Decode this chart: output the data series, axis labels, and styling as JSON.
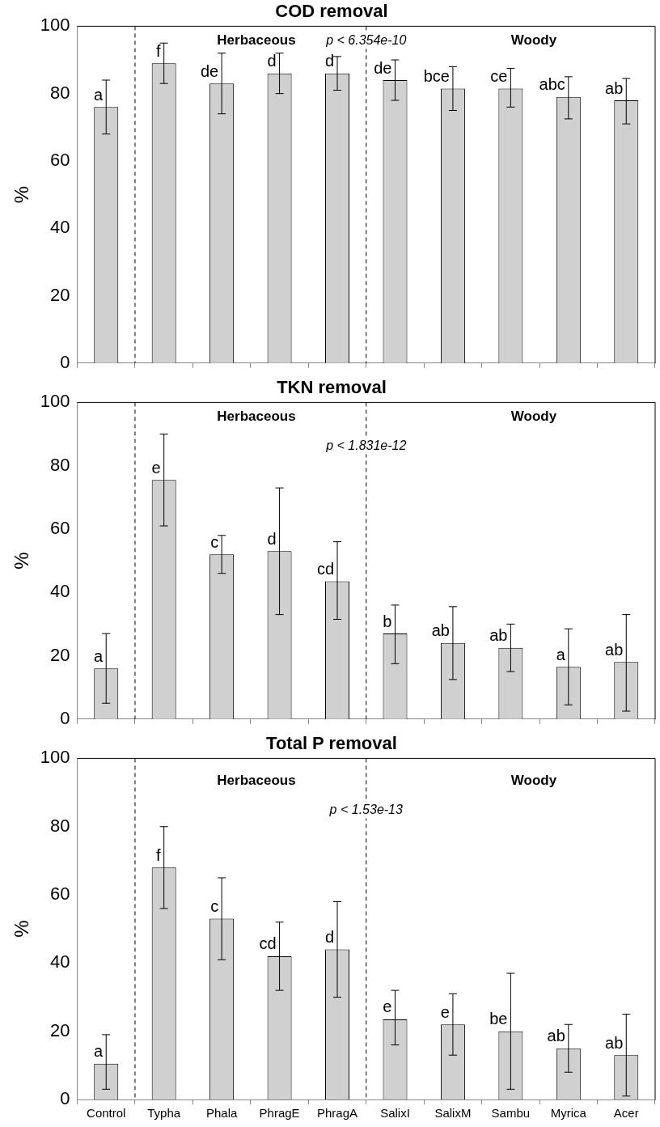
{
  "chart_data": [
    {
      "type": "bar",
      "title": "COD removal",
      "ylabel": "%",
      "categories": [
        "Control",
        "Typha",
        "Phala",
        "PhragE",
        "PhragA",
        "SalixI",
        "SalixM",
        "Sambu",
        "Myrica",
        "Acer"
      ],
      "tick_labels": "y",
      "values": [
        76,
        89,
        83,
        86,
        86,
        84,
        81.5,
        81.5,
        79,
        78
      ],
      "color": "#d0d0d0",
      "errors": [
        [
          68,
          84
        ],
        [
          83,
          95
        ],
        [
          74,
          92
        ],
        [
          80,
          92
        ],
        [
          81,
          91
        ],
        [
          78,
          90
        ],
        [
          75,
          88
        ],
        [
          76,
          87.5
        ],
        [
          72.5,
          85
        ],
        [
          71,
          84.5
        ]
      ],
      "ylim": [
        0,
        100
      ],
      "yticks": [
        0,
        20,
        40,
        60,
        80,
        100
      ],
      "annotations": [
        "Herbaceous",
        "p < 6.354e-10",
        "Woody",
        {
          "text": "a",
          "x": "Control",
          "y": 76
        },
        {
          "text": "f",
          "x": "Typha",
          "y": 89
        },
        {
          "text": "de",
          "x": "Phala",
          "y": 83
        },
        {
          "text": "d",
          "x": "PhragE",
          "y": 86
        },
        {
          "text": "d",
          "x": "PhragA",
          "y": 86
        },
        {
          "text": "de",
          "x": "SalixI",
          "y": 84
        },
        {
          "text": "bce",
          "x": "SalixM",
          "y": 81.5
        },
        {
          "text": "ce",
          "x": "Sambu",
          "y": 81.5
        },
        {
          "text": "abc",
          "x": "Myrica",
          "y": 79
        },
        {
          "text": "ab",
          "x": "Acer",
          "y": 78
        }
      ]
    },
    {
      "type": "bar",
      "title": "TKN removal",
      "ylabel": "%",
      "categories": [
        "Control",
        "Typha",
        "Phala",
        "PhragE",
        "PhragA",
        "SalixI",
        "SalixM",
        "Sambu",
        "Myrica",
        "Acer"
      ],
      "tick_labels": "y",
      "values": [
        16,
        75.5,
        52,
        53,
        43.5,
        27,
        24,
        22.5,
        16.5,
        18
      ],
      "color": "#d0d0d0",
      "errors": [
        [
          5,
          27
        ],
        [
          61,
          90
        ],
        [
          46,
          58
        ],
        [
          33,
          73
        ],
        [
          31.5,
          56
        ],
        [
          17.5,
          36
        ],
        [
          12.5,
          35.5
        ],
        [
          15,
          30
        ],
        [
          4.5,
          28.5
        ],
        [
          2.5,
          33
        ]
      ],
      "ylim": [
        0,
        100
      ],
      "yticks": [
        0,
        20,
        40,
        60,
        80,
        100
      ],
      "annotations": [
        "Herbaceous",
        "p < 1.831e-12",
        "Woody",
        {
          "text": "a",
          "x": "Control",
          "y": 16
        },
        {
          "text": "e",
          "x": "Typha",
          "y": 75.5
        },
        {
          "text": "c",
          "x": "Phala",
          "y": 52
        },
        {
          "text": "d",
          "x": "PhragE",
          "y": 53
        },
        {
          "text": "cd",
          "x": "PhragA",
          "y": 43.5
        },
        {
          "text": "b",
          "x": "SalixI",
          "y": 27
        },
        {
          "text": "ab",
          "x": "SalixM",
          "y": 24
        },
        {
          "text": "ab",
          "x": "Sambu",
          "y": 22.5
        },
        {
          "text": "a",
          "x": "Myrica",
          "y": 16.5
        },
        {
          "text": "ab",
          "x": "Acer",
          "y": 18
        }
      ]
    },
    {
      "type": "bar",
      "title": "Total P removal",
      "ylabel": "%",
      "categories": [
        "Control",
        "Typha",
        "Phala",
        "PhragE",
        "PhragA",
        "SalixI",
        "SalixM",
        "Sambu",
        "Myrica",
        "Acer"
      ],
      "values": [
        10.5,
        68,
        53,
        42,
        44,
        23.5,
        22,
        20,
        15,
        13
      ],
      "color": "#d0d0d0",
      "errors": [
        [
          3,
          19
        ],
        [
          56,
          80
        ],
        [
          41,
          65
        ],
        [
          32,
          52
        ],
        [
          30,
          58
        ],
        [
          16,
          32
        ],
        [
          13,
          31
        ],
        [
          3,
          37
        ],
        [
          8,
          22
        ],
        [
          1,
          25
        ]
      ],
      "ylim": [
        0,
        100
      ],
      "yticks": [
        0,
        20,
        40,
        60,
        80,
        100
      ],
      "annotations": [
        "Herbaceous",
        "p < 1.53e-13",
        "Woody",
        {
          "text": "a",
          "x": "Control",
          "y": 10.5
        },
        {
          "text": "f",
          "x": "Typha",
          "y": 68
        },
        {
          "text": "c",
          "x": "Phala",
          "y": 53
        },
        {
          "text": "cd",
          "x": "PhragE",
          "y": 42
        },
        {
          "text": "d",
          "x": "PhragA",
          "y": 44
        },
        {
          "text": "e",
          "x": "SalixI",
          "y": 23.5
        },
        {
          "text": "e",
          "x": "SalixM",
          "y": 22
        },
        {
          "text": "be",
          "x": "Sambu",
          "y": 20
        },
        {
          "text": "ab",
          "x": "Myrica",
          "y": 15
        },
        {
          "text": "ab",
          "x": "Acer",
          "y": 13
        }
      ]
    }
  ]
}
